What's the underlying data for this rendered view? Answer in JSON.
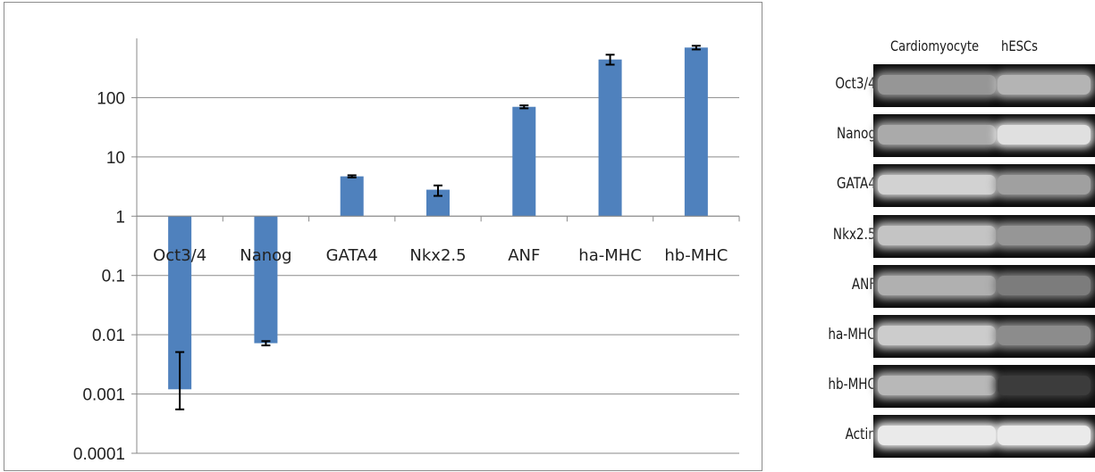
{
  "chart_data": {
    "type": "bar",
    "yscale": "log",
    "ylim": [
      0.0001,
      1000
    ],
    "baseline": 1,
    "grid": true,
    "bar_color": "#4f81bd",
    "yticks": [
      {
        "value": 0.0001,
        "label": "0.0001"
      },
      {
        "value": 0.001,
        "label": "0.001"
      },
      {
        "value": 0.01,
        "label": "0.01"
      },
      {
        "value": 0.1,
        "label": "0.1"
      },
      {
        "value": 1,
        "label": "1"
      },
      {
        "value": 10,
        "label": "10"
      },
      {
        "value": 100,
        "label": "100"
      }
    ],
    "categories": [
      "Oct3/4",
      "Nanog",
      "GATA4",
      "Nkx2.5",
      "ANF",
      "ha-MHC",
      "hb-MHC"
    ],
    "values": [
      0.0012,
      0.0072,
      4.7,
      2.8,
      70,
      440,
      700
    ],
    "error_low": [
      0.00055,
      0.0066,
      4.5,
      2.2,
      66,
      360,
      650
    ],
    "error_high": [
      0.0051,
      0.0078,
      4.9,
      3.3,
      74,
      530,
      750
    ]
  },
  "gel": {
    "columns": [
      "Cardiomyocyte",
      "hESCs"
    ],
    "rows": [
      {
        "label": "Oct3/4",
        "bands": [
          0.55,
          0.7
        ]
      },
      {
        "label": "Nanog",
        "bands": [
          0.65,
          0.92
        ]
      },
      {
        "label": "GATA4",
        "bands": [
          0.85,
          0.6
        ]
      },
      {
        "label": "Nkx2.5",
        "bands": [
          0.78,
          0.55
        ]
      },
      {
        "label": "ANF",
        "bands": [
          0.68,
          0.42
        ]
      },
      {
        "label": "ha-MHC",
        "bands": [
          0.82,
          0.5
        ]
      },
      {
        "label": "hb-MHC",
        "bands": [
          0.72,
          0.1
        ]
      },
      {
        "label": "Actin",
        "bands": [
          0.97,
          0.97
        ]
      }
    ]
  }
}
